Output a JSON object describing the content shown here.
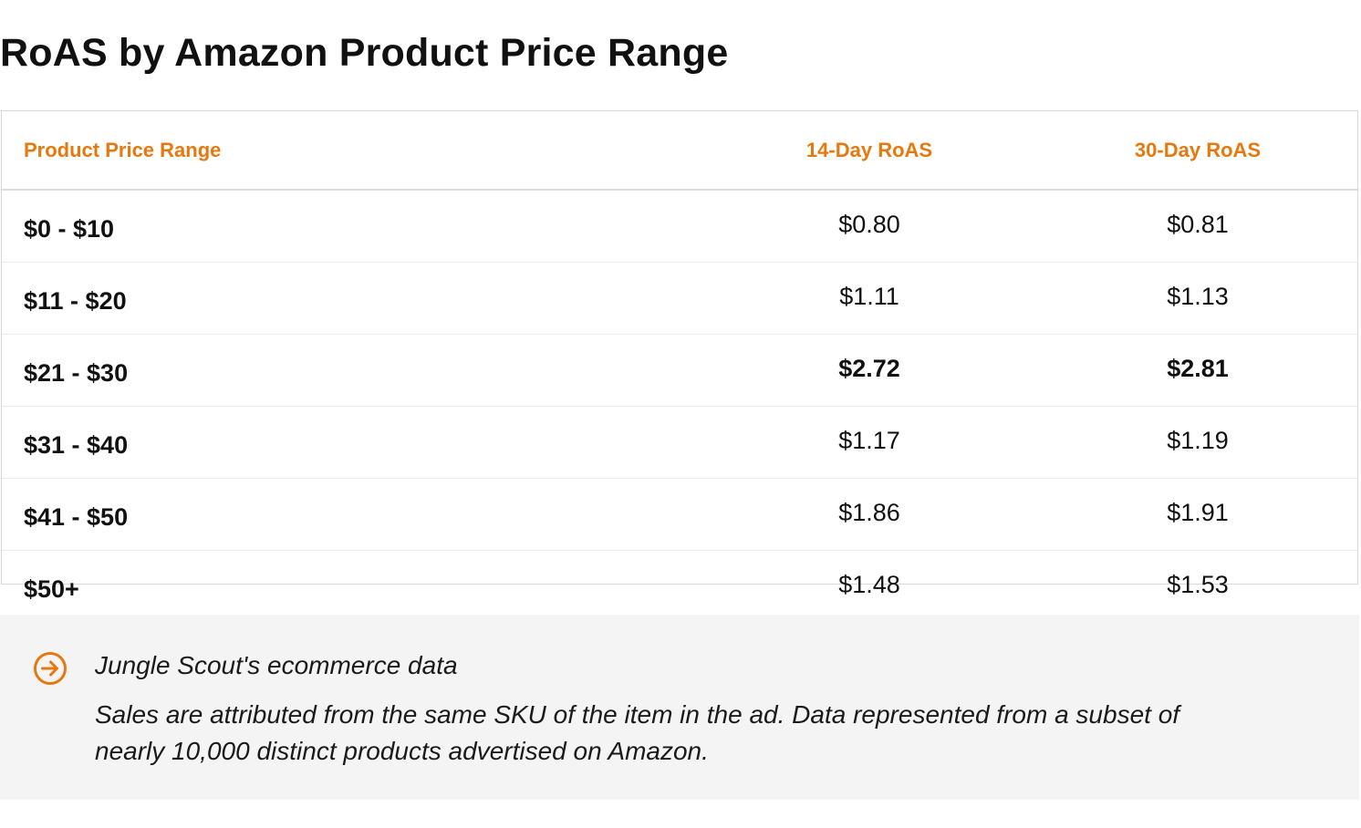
{
  "title": "RoAS by Amazon Product Price Range",
  "table": {
    "headers": [
      "Product Price Range",
      "14-Day RoAS",
      "30-Day RoAS"
    ],
    "rows": [
      {
        "range": "$0 - $10",
        "roas14": "$0.80",
        "roas30": "$0.81"
      },
      {
        "range": "$11 - $20",
        "roas14": "$1.11",
        "roas30": "$1.13"
      },
      {
        "range": "$21 - $30",
        "roas14": "$2.72",
        "roas30": "$2.81"
      },
      {
        "range": "$31 - $40",
        "roas14": "$1.17",
        "roas30": "$1.19"
      },
      {
        "range": "$41 - $50",
        "roas14": "$1.86",
        "roas30": "$1.91"
      },
      {
        "range": "$50+",
        "roas14": "$1.48",
        "roas30": "$1.53"
      }
    ]
  },
  "note": {
    "icon": "arrow-circle-right-icon",
    "heading": "Jungle Scout's ecommerce data",
    "text": "Sales are attributed from the same SKU of the item in the ad. Data represented from a subset of nearly 10,000 distinct products advertised on Amazon."
  },
  "colors": {
    "accent": "#e8780d",
    "note_background": "#f3f4f3",
    "text": "#111111"
  },
  "chart_data": {
    "type": "table",
    "title": "RoAS by Amazon Product Price Range",
    "columns": [
      "Product Price Range",
      "14-Day RoAS",
      "30-Day RoAS"
    ],
    "categories": [
      "$0 - $10",
      "$11 - $20",
      "$21 - $30",
      "$31 - $40",
      "$41 - $50",
      "$50+"
    ],
    "series": [
      {
        "name": "14-Day RoAS",
        "values": [
          0.8,
          1.11,
          2.72,
          1.17,
          1.86,
          1.48
        ]
      },
      {
        "name": "30-Day RoAS",
        "values": [
          0.81,
          1.13,
          2.81,
          1.19,
          1.91,
          1.53
        ]
      }
    ],
    "highlighted_row": "$21 - $30"
  }
}
